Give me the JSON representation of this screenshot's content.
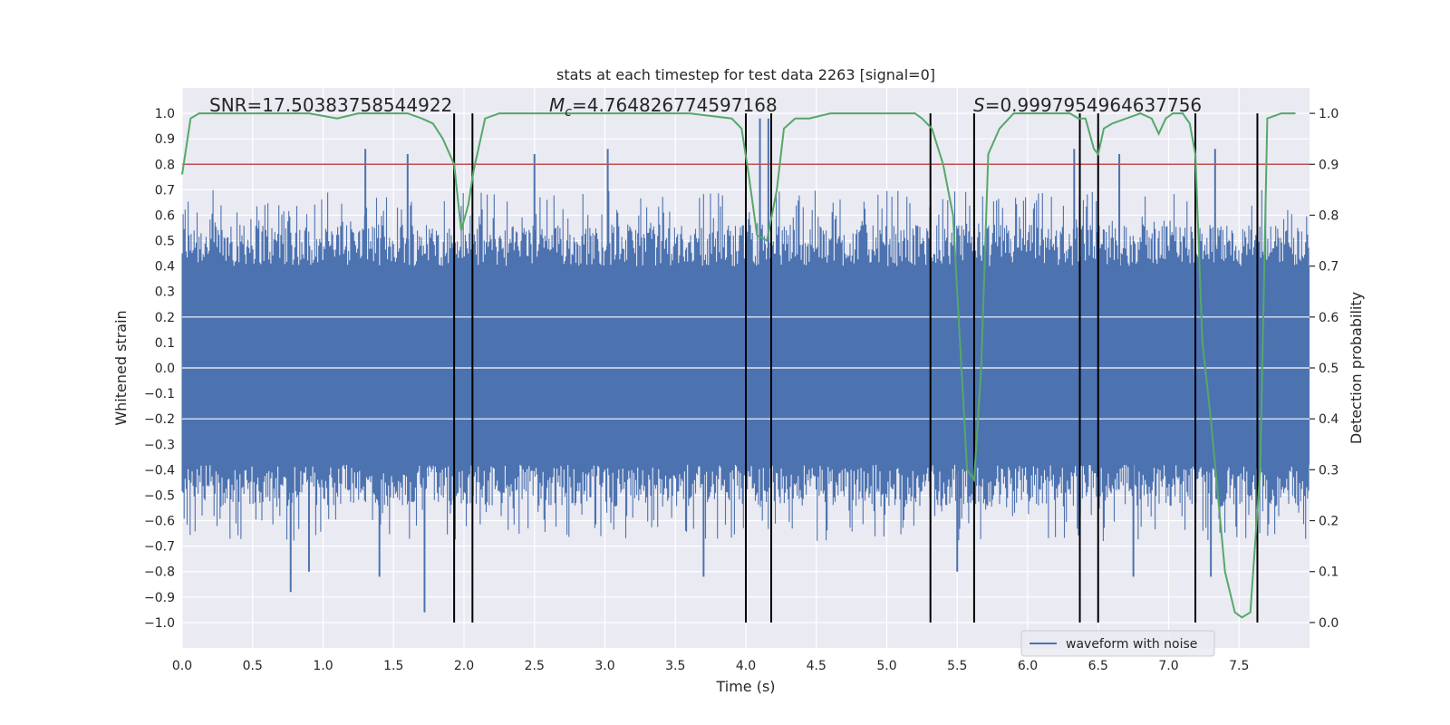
{
  "chart_data": {
    "type": "line",
    "title": "stats at each timestep for test data 2263 [signal=0]",
    "xlabel": "Time (s)",
    "ylabel": "Whitened strain",
    "y2label": "Detection probability",
    "xlim": [
      0.0,
      8.0
    ],
    "ylim": [
      -1.1,
      1.1
    ],
    "y2lim": [
      -0.05,
      1.05
    ],
    "xticks": [
      "0.0",
      "0.5",
      "1.0",
      "1.5",
      "2.0",
      "2.5",
      "3.0",
      "3.5",
      "4.0",
      "4.5",
      "5.0",
      "5.5",
      "6.0",
      "6.5",
      "7.0",
      "7.5"
    ],
    "yticks": [
      "1.0",
      "0.9",
      "0.8",
      "0.7",
      "0.6",
      "0.5",
      "0.4",
      "0.3",
      "0.2",
      "0.1",
      "0.0",
      "-0.1",
      "-0.2",
      "-0.3",
      "-0.4",
      "-0.5",
      "-0.6",
      "-0.7",
      "-0.8",
      "-0.9",
      "-1.0"
    ],
    "y2ticks": [
      "1.0",
      "0.9",
      "0.8",
      "0.7",
      "0.6",
      "0.5",
      "0.4",
      "0.3",
      "0.2",
      "0.1",
      "0.0"
    ],
    "grid": true,
    "legend": {
      "placement": "lower-right",
      "entries": [
        "waveform with noise"
      ]
    },
    "annotations": {
      "snr": "SNR=17.50383758544922",
      "mc_symbol": "M",
      "mc_sub": "c",
      "mc_value": "=4.764826774597168",
      "s_symbol": "S",
      "s_value": "=0.9997954964637756"
    },
    "threshold": {
      "y2": 0.9,
      "color": "#c44e52"
    },
    "vlines": [
      1.93,
      2.06,
      4.0,
      4.18,
      5.31,
      5.62,
      6.37,
      6.5,
      7.19,
      7.63
    ],
    "spikes": [
      {
        "x": 1.3,
        "y": 0.86
      },
      {
        "x": 1.6,
        "y": 0.84
      },
      {
        "x": 2.5,
        "y": 0.84
      },
      {
        "x": 3.02,
        "y": 0.86
      },
      {
        "x": 4.1,
        "y": 0.98
      },
      {
        "x": 4.16,
        "y": 0.98
      },
      {
        "x": 6.33,
        "y": 0.86
      },
      {
        "x": 6.65,
        "y": 0.84
      },
      {
        "x": 7.33,
        "y": 0.86
      },
      {
        "x": 0.77,
        "y": -0.88
      },
      {
        "x": 0.9,
        "y": -0.8
      },
      {
        "x": 1.4,
        "y": -0.82
      },
      {
        "x": 1.72,
        "y": -0.96
      },
      {
        "x": 3.7,
        "y": -0.82
      },
      {
        "x": 5.5,
        "y": -0.8
      },
      {
        "x": 6.75,
        "y": -0.82
      },
      {
        "x": 7.3,
        "y": -0.82
      }
    ],
    "series": [
      {
        "name": "waveform with noise",
        "color": "#4c72b0",
        "band": [
          -0.38,
          0.4
        ],
        "peak": 0.7
      },
      {
        "color": "#55a868",
        "axis": "y2",
        "x": [
          0.0,
          0.06,
          0.12,
          0.3,
          0.6,
          0.9,
          1.1,
          1.25,
          1.4,
          1.6,
          1.7,
          1.78,
          1.85,
          1.93,
          1.98,
          2.03,
          2.07,
          2.15,
          2.25,
          2.45,
          2.8,
          3.2,
          3.6,
          3.9,
          3.97,
          4.02,
          4.08,
          4.15,
          4.22,
          4.27,
          4.35,
          4.45,
          4.6,
          5.0,
          5.2,
          5.25,
          5.32,
          5.4,
          5.47,
          5.53,
          5.57,
          5.62,
          5.67,
          5.72,
          5.8,
          5.9,
          6.1,
          6.3,
          6.36,
          6.41,
          6.47,
          6.5,
          6.54,
          6.6,
          6.7,
          6.8,
          6.88,
          6.93,
          6.98,
          7.03,
          7.1,
          7.15,
          7.19,
          7.24,
          7.3,
          7.4,
          7.47,
          7.52,
          7.58,
          7.65,
          7.7,
          7.8,
          7.9
        ],
        "y": [
          0.88,
          0.99,
          1.0,
          1.0,
          1.0,
          1.0,
          0.99,
          1.0,
          1.0,
          1.0,
          0.99,
          0.98,
          0.95,
          0.9,
          0.77,
          0.82,
          0.89,
          0.99,
          1.0,
          1.0,
          1.0,
          1.0,
          1.0,
          0.99,
          0.97,
          0.88,
          0.76,
          0.75,
          0.85,
          0.97,
          0.99,
          0.99,
          1.0,
          1.0,
          1.0,
          0.99,
          0.97,
          0.9,
          0.8,
          0.5,
          0.3,
          0.28,
          0.5,
          0.92,
          0.97,
          1.0,
          1.0,
          1.0,
          0.99,
          0.99,
          0.93,
          0.92,
          0.97,
          0.98,
          0.99,
          1.0,
          0.99,
          0.96,
          0.99,
          1.0,
          1.0,
          0.98,
          0.92,
          0.55,
          0.4,
          0.1,
          0.02,
          0.01,
          0.02,
          0.3,
          0.99,
          1.0,
          1.0
        ]
      }
    ]
  }
}
